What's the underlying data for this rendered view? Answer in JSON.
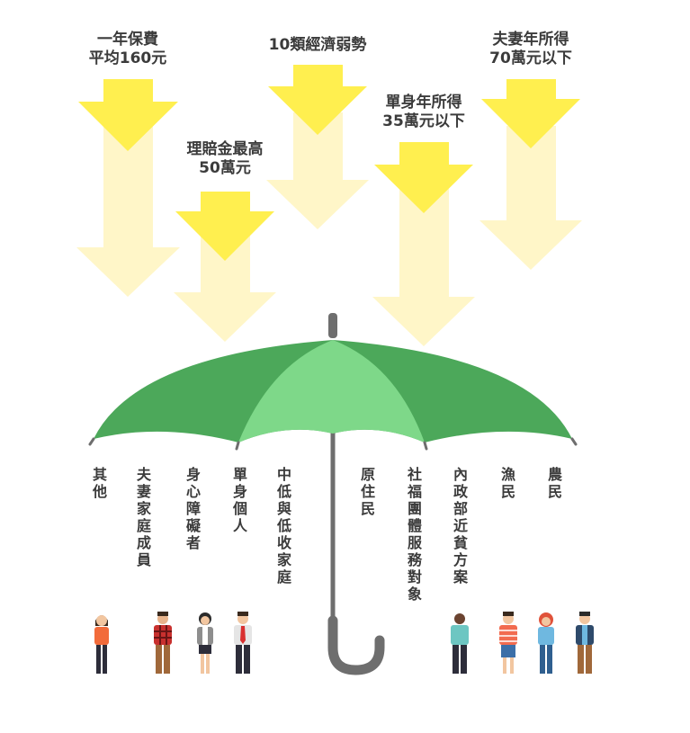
{
  "benefits": [
    {
      "id": "premium",
      "text": "一年保費\n平均160元"
    },
    {
      "id": "claim",
      "text": "理賠金最高\n50萬元"
    },
    {
      "id": "categories",
      "text": "10類經濟弱勢"
    },
    {
      "id": "single",
      "text": "單身年所得\n35萬元以下"
    },
    {
      "id": "couple",
      "text": "夫妻年所得\n70萬元以下"
    }
  ],
  "groups": [
    {
      "id": "other",
      "text": "其他"
    },
    {
      "id": "family",
      "text": "夫妻家庭成員"
    },
    {
      "id": "disabled",
      "text": "身心障礙者"
    },
    {
      "id": "single",
      "text": "單身個人"
    },
    {
      "id": "low-income",
      "text": "中低與低收家庭"
    },
    {
      "id": "indigenous",
      "text": "原住民"
    },
    {
      "id": "social-welfare",
      "text": "社福團體服務對象"
    },
    {
      "id": "interior-poverty",
      "text": "內政部近貧方案"
    },
    {
      "id": "fishermen",
      "text": "漁民"
    },
    {
      "id": "farmers",
      "text": "農民"
    }
  ],
  "colors": {
    "arrow_strong": "#FFEF4F",
    "arrow_faded": "#FFF6C8",
    "umbrella_dark": "#4CA85A",
    "umbrella_light": "#7ED889",
    "handle": "#6E6E6E"
  }
}
